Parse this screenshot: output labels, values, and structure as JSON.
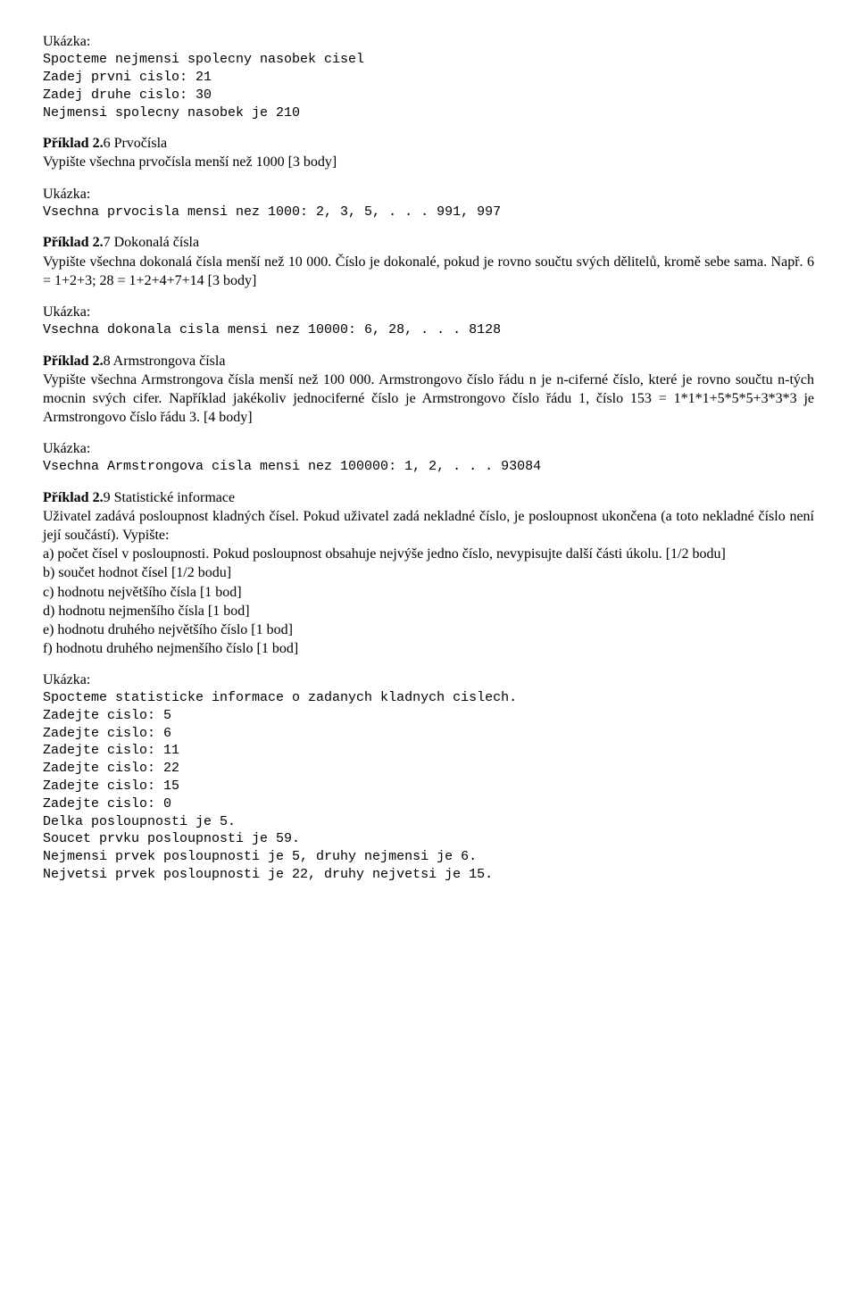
{
  "ukazka_label": "Ukázka:",
  "sec1": {
    "lines": [
      "Spocteme nejmensi spolecny nasobek cisel",
      "Zadej prvni cislo: 21",
      "Zadej druhe cislo: 30",
      "Nejmensi spolecny nasobek je 210"
    ]
  },
  "ex26": {
    "title_bold": "Příklad 2.",
    "title_rest": "6 Prvočísla",
    "body": "Vypište všechna prvočísla menší než 1000 [3 body]",
    "output": "Vsechna prvocisla mensi nez 1000: 2, 3, 5, . . . 991, 997"
  },
  "ex27": {
    "title_bold": "Příklad 2.",
    "title_rest": "7 Dokonalá čísla",
    "body": "Vypište všechna dokonalá čísla menší než 10 000. Číslo je dokonalé, pokud je rovno součtu svých dělitelů, kromě sebe sama. Např. 6 = 1+2+3; 28 = 1+2+4+7+14 [3 body]",
    "output": "Vsechna dokonala cisla mensi nez 10000: 6, 28, . . . 8128"
  },
  "ex28": {
    "title_bold": "Příklad 2.",
    "title_rest": "8 Armstrongova čísla",
    "body": "Vypište všechna Armstrongova čísla menší než 100 000. Armstrongovo číslo řádu n je n-ciferné číslo, které je rovno součtu n-tých mocnin svých cifer. Například jakékoliv jednociferné číslo je Armstrongovo číslo řádu 1, číslo 153 = 1*1*1+5*5*5+3*3*3 je Armstrongovo číslo řádu 3. [4 body]",
    "output": "Vsechna Armstrongova cisla mensi nez 100000: 1, 2, . . . 93084"
  },
  "ex29": {
    "title_bold": "Příklad 2.",
    "title_rest": "9 Statistické informace",
    "body": "Uživatel zadává posloupnost kladných čísel. Pokud uživatel zadá nekladné číslo, je posloupnost ukončena (a toto nekladné číslo není její součástí). Vypište:",
    "items": [
      "a) počet čísel v posloupnosti. Pokud posloupnost obsahuje nejvýše jedno číslo, nevypisujte další části úkolu. [1/2 bodu]",
      "b) součet hodnot čísel [1/2 bodu]",
      "c) hodnotu největšího čísla [1 bod]",
      "d) hodnotu nejmenšího čísla [1 bod]",
      "e) hodnotu druhého největšího číslo [1 bod]",
      "f) hodnotu druhého nejmenšího číslo [1 bod]"
    ],
    "output": [
      "Spocteme statisticke informace o zadanych kladnych cislech.",
      "Zadejte cislo: 5",
      "Zadejte cislo: 6",
      "Zadejte cislo: 11",
      "Zadejte cislo: 22",
      "Zadejte cislo: 15",
      "Zadejte cislo: 0",
      "Delka posloupnosti je 5.",
      "Soucet prvku posloupnosti je 59.",
      "Nejmensi prvek posloupnosti je 5, druhy nejmensi je 6.",
      "Nejvetsi prvek posloupnosti je 22, druhy nejvetsi je 15."
    ]
  }
}
